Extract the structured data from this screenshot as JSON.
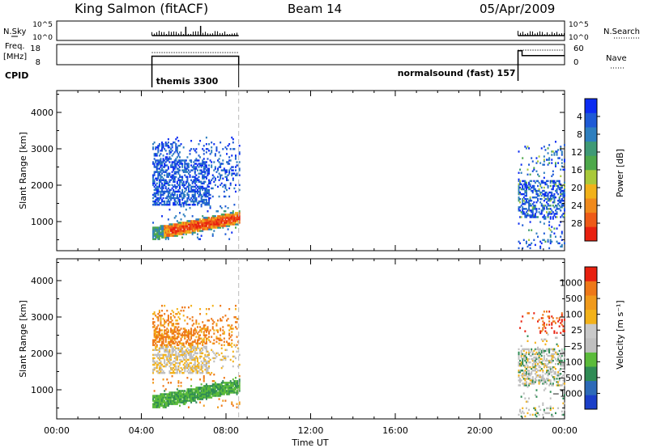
{
  "header": {
    "station": "King Salmon (fitACF)",
    "beam": "Beam 14",
    "date": "05/Apr/2009"
  },
  "left_labels": {
    "nsky": "N.Sky",
    "freq": "Freq.",
    "freq_unit": "[MHz]",
    "cpid": "CPID"
  },
  "right_labels": {
    "nsearch": "N.Search",
    "nave": "Nave"
  },
  "chart_data": [
    {
      "type": "line",
      "name": "noise-panel",
      "left_ticks": [
        "10^5",
        "10^0"
      ],
      "right_ticks": [
        "10^5",
        "10^0"
      ],
      "segments": [
        [
          4.5,
          8.6
        ],
        [
          21.8,
          24.0
        ]
      ]
    },
    {
      "type": "line",
      "name": "frequency-nave-panel",
      "left_ticks": [
        "18",
        "8"
      ],
      "right_ticks": [
        "60",
        "0"
      ],
      "segments": [
        {
          "start": 4.5,
          "end": 8.6,
          "freq_level": 0.42,
          "nave_level": 0.6
        },
        {
          "start": 21.8,
          "end": 24.0,
          "freq_level": 0.45,
          "nave_level": 0.72
        }
      ]
    },
    {
      "type": "table",
      "name": "cpid-panel",
      "programs": [
        {
          "label": "themis 3300",
          "start": 4.5,
          "end": 8.6
        },
        {
          "label": "normalsound (fast) 157",
          "start": 21.8,
          "end": 24.0
        }
      ]
    },
    {
      "type": "heatmap",
      "name": "power-panel",
      "ylabel": "Slant Range [km]",
      "yticks": [
        1000,
        2000,
        3000,
        4000
      ],
      "ylim": [
        200,
        4600
      ],
      "xlim": [
        0,
        24
      ],
      "colorbar_label": "Power [dB]",
      "colorbar_ticks": [
        "4",
        "8",
        "12",
        "16",
        "20",
        "24",
        "28"
      ],
      "colorbar_colors": [
        "#0c2cf2",
        "#1e5ad6",
        "#2e7fbf",
        "#3f9a76",
        "#4ea94b",
        "#a9c93a",
        "#f1b21b",
        "#f08a1c",
        "#ee5a17",
        "#e8200f"
      ],
      "regions": [
        {
          "t0": 4.4,
          "t1": 8.6,
          "r0": 500,
          "r1": 3300,
          "kind": "power-a"
        },
        {
          "t0": 21.8,
          "t1": 24.0,
          "r0": 250,
          "r1": 3200,
          "kind": "power-b"
        }
      ]
    },
    {
      "type": "heatmap",
      "name": "velocity-panel",
      "ylabel": "Slant Range [km]",
      "yticks": [
        1000,
        2000,
        3000,
        4000
      ],
      "ylim": [
        200,
        4600
      ],
      "xlim": [
        0,
        24
      ],
      "xticks": [
        "00:00",
        "04:00",
        "08:00",
        "12:00",
        "16:00",
        "20:00",
        "00:00"
      ],
      "xlabel": "Time UT",
      "colorbar_label": "Velocity [m s⁻¹]",
      "colorbar_ticks": [
        "1000",
        "500",
        "100",
        "25",
        "−25",
        "−100",
        "−500",
        "−1000"
      ],
      "colorbar_colors": [
        "#1b3fc8",
        "#2d6ab8",
        "#2f8b55",
        "#5bbb3b",
        "#bfbfbf",
        "#c9c9c9",
        "#f3b21a",
        "#f09a1c",
        "#ee7818",
        "#e8200f"
      ],
      "regions": [
        {
          "t0": 4.4,
          "t1": 8.6,
          "r0": 500,
          "r1": 3300,
          "kind": "vel-a"
        },
        {
          "t0": 21.8,
          "t1": 24.0,
          "r0": 250,
          "r1": 3200,
          "kind": "vel-b"
        }
      ]
    }
  ]
}
